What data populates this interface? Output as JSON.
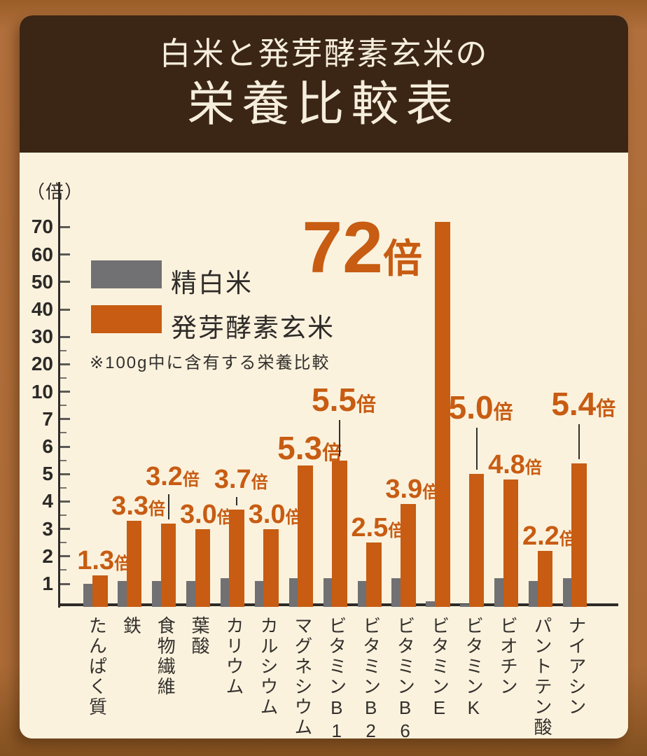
{
  "header": {
    "line1": "白米と発芽酵素玄米の",
    "line2": "栄養比較表"
  },
  "y_axis": {
    "unit": "（倍）"
  },
  "legend": {
    "series1": "精白米",
    "series2": "発芽酵素玄米",
    "note": "※100g中に含有する栄養比較"
  },
  "highlight": {
    "number": "72",
    "unit": "倍"
  },
  "colors": {
    "accent_orange": "#c75c12",
    "gray": "#717073",
    "panel_cream": "#fbf2de",
    "header_brown": "#3b2514",
    "background_brown": "#a96a36",
    "axis_dark": "#2e2b28"
  },
  "chart_data": {
    "type": "bar",
    "title": "白米と発芽酵素玄米の栄養比較表",
    "ylabel": "（倍）",
    "note": "※100g中に含有する栄養比較",
    "scale": "non-linear: ticks 1,2,3,4,5,6,7,10,20,30,40,50,60,70 equally spaced",
    "yticks": [
      1,
      2,
      3,
      4,
      5,
      6,
      7,
      10,
      20,
      30,
      40,
      50,
      60,
      70
    ],
    "grid": false,
    "legend_position": "upper left",
    "categories": [
      "たんぱく質",
      "鉄",
      "食物繊維",
      "葉酸",
      "カリウム",
      "カルシウム",
      "マグネシウム",
      "ビタミンB1",
      "ビタミンB2",
      "ビタミンB6",
      "ビタミンE",
      "ビタミンK",
      "ビオチン",
      "パントテン酸",
      "ナイアシン"
    ],
    "series": [
      {
        "name": "精白米",
        "color": "#717073",
        "values": [
          1.0,
          1.1,
          1.1,
          1.1,
          1.2,
          1.1,
          1.2,
          1.2,
          1.1,
          1.2,
          0.35,
          0.12,
          1.2,
          1.1,
          1.2
        ]
      },
      {
        "name": "発芽酵素玄米",
        "color": "#c75c12",
        "values": [
          1.3,
          3.3,
          3.2,
          3.0,
          3.7,
          3.0,
          5.3,
          5.5,
          2.5,
          3.9,
          72,
          5.0,
          4.8,
          2.2,
          5.4
        ]
      }
    ],
    "value_labels": [
      "1.3倍",
      "3.3倍",
      "3.2倍",
      "3.0倍",
      "3.7倍",
      "3.0倍",
      "5.3倍",
      "5.5倍",
      "2.5倍",
      "3.9倍",
      "72倍",
      "5.0倍",
      "4.8倍",
      "2.2倍",
      "5.4倍"
    ]
  }
}
